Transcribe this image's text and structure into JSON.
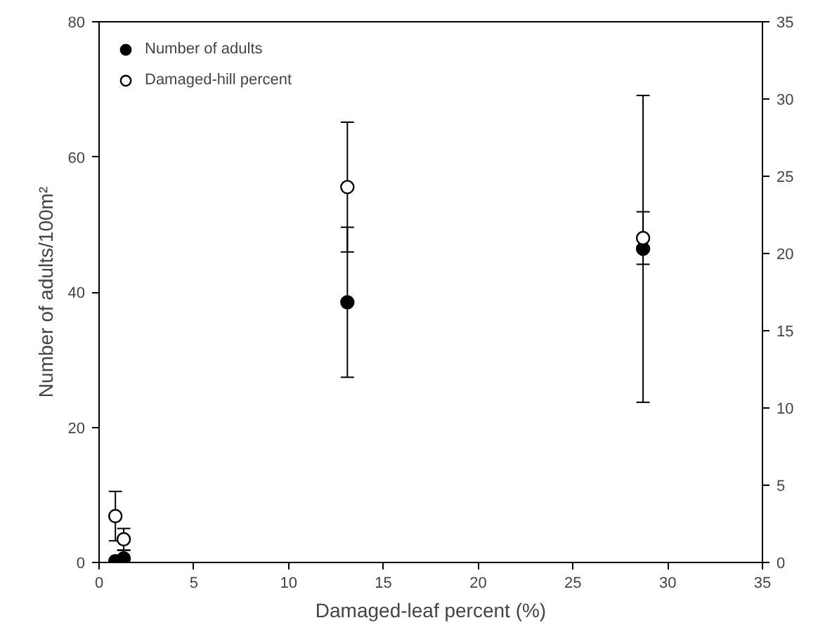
{
  "chart_data": {
    "type": "scatter",
    "xlabel": "Damaged-leaf percent (%)",
    "ylabel": "Number of adults/100m²",
    "xlim": [
      0,
      35
    ],
    "xticks": [
      0,
      5,
      10,
      15,
      20,
      25,
      30,
      35
    ],
    "ylim": [
      0,
      80
    ],
    "yticks": [
      0,
      20,
      40,
      60,
      80
    ],
    "y2lim": [
      0,
      35
    ],
    "y2ticks": [
      0,
      5,
      10,
      15,
      20,
      25,
      30,
      35
    ],
    "marker": "circle",
    "legend": "top left",
    "grid": false,
    "series": [
      {
        "name": "Number of adults",
        "color": "#000000",
        "x": [
          0.86,
          1.3,
          13.1,
          28.7
        ],
        "values": [
          0.2,
          0.6,
          38.5,
          46.4
        ],
        "errors": [
          null,
          1.2,
          11.1,
          22.7
        ]
      },
      {
        "name": "Damaged-hill percent",
        "color": "#ffffff",
        "axis": "y2",
        "x": [
          0.86,
          1.3,
          13.1,
          28.7
        ],
        "values": [
          3.0,
          1.5,
          24.3,
          21.0
        ],
        "errors": [
          1.6,
          0.7,
          4.2,
          1.7
        ]
      }
    ]
  }
}
